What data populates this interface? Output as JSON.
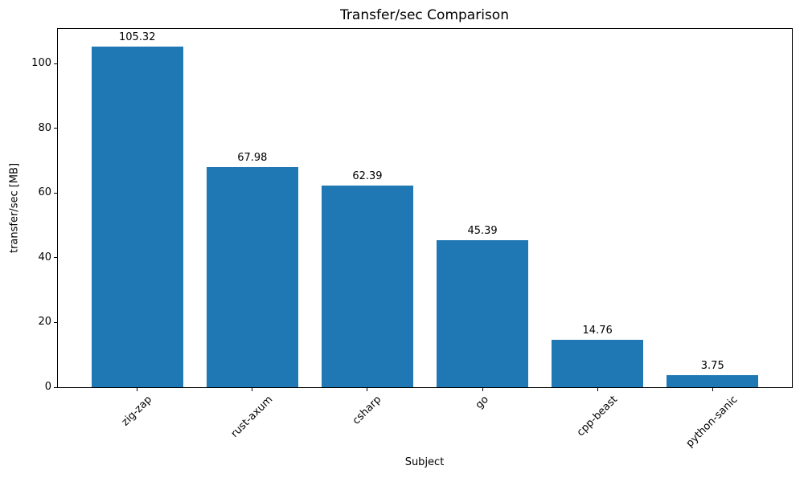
{
  "chart_data": {
    "type": "bar",
    "title": "Transfer/sec Comparison",
    "xlabel": "Subject",
    "ylabel": "transfer/sec [MB]",
    "categories": [
      "zig-zap",
      "rust-axum",
      "csharp",
      "go",
      "cpp-beast",
      "python-sanic"
    ],
    "values": [
      105.32,
      67.98,
      62.39,
      45.39,
      14.76,
      3.75
    ],
    "value_labels": [
      "105.32",
      "67.98",
      "62.39",
      "45.39",
      "14.76",
      "3.75"
    ],
    "yticks": [
      0,
      20,
      40,
      60,
      80,
      100
    ],
    "ylim": [
      0,
      110.7
    ],
    "xtick_rotation": 45,
    "grid": false,
    "legend_position": "none",
    "bar_color": "#1f77b4",
    "text_color": "#000000",
    "background_color": "#ffffff"
  }
}
